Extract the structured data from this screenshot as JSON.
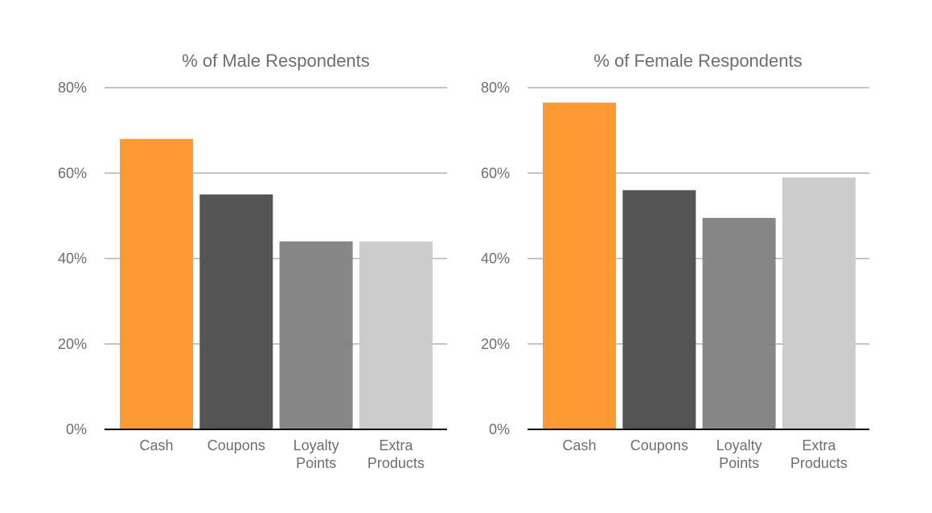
{
  "chart_data": [
    {
      "type": "bar",
      "title": "% of Male Respondents",
      "categories": [
        "Cash",
        "Coupons",
        "Loyalty Points",
        "Extra Products"
      ],
      "category_lines": [
        [
          "Cash"
        ],
        [
          "Coupons"
        ],
        [
          "Loyalty",
          "Points"
        ],
        [
          "Extra",
          "Products"
        ]
      ],
      "values": [
        68,
        55,
        44,
        44
      ],
      "colors": [
        "#FF9933",
        "#555555",
        "#868686",
        "#CCCCCC"
      ],
      "ylim": [
        0,
        80
      ],
      "yticks": [
        0,
        20,
        40,
        60,
        80
      ],
      "ytick_labels": [
        "0%",
        "20%",
        "40%",
        "60%",
        "80%"
      ],
      "xlabel": "",
      "ylabel": "",
      "grid": true,
      "legend": false
    },
    {
      "type": "bar",
      "title": "% of Female Respondents",
      "categories": [
        "Cash",
        "Coupons",
        "Loyalty Points",
        "Extra Products"
      ],
      "category_lines": [
        [
          "Cash"
        ],
        [
          "Coupons"
        ],
        [
          "Loyalty",
          "Points"
        ],
        [
          "Extra",
          "Products"
        ]
      ],
      "values": [
        76.5,
        56,
        49.5,
        59
      ],
      "colors": [
        "#FF9933",
        "#555555",
        "#868686",
        "#CCCCCC"
      ],
      "ylim": [
        0,
        80
      ],
      "yticks": [
        0,
        20,
        40,
        60,
        80
      ],
      "ytick_labels": [
        "0%",
        "20%",
        "40%",
        "60%",
        "80%"
      ],
      "xlabel": "",
      "ylabel": "",
      "grid": true,
      "legend": false
    }
  ],
  "colors": {
    "grid": "#B3B3B3",
    "axis": "#000000",
    "text": "#6E6E6E"
  }
}
